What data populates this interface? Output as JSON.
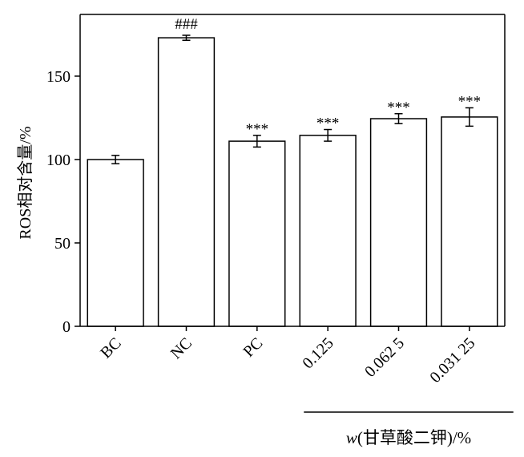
{
  "chart_data": {
    "type": "bar",
    "categories": [
      "BC",
      "NC",
      "PC",
      "0.125",
      "0.062 5",
      "0.031 25"
    ],
    "values": [
      100,
      173,
      111,
      114.5,
      124.5,
      125.5
    ],
    "errors": [
      2.5,
      1.5,
      3.5,
      3.5,
      3,
      5.5
    ],
    "significance": [
      "",
      "###",
      "***",
      "***",
      "***",
      "***"
    ],
    "ylabel": "ROS相对含量/%",
    "ylim": [
      0,
      187
    ],
    "yticks": [
      0,
      50,
      100,
      150
    ],
    "group_label": {
      "prefix": "w",
      "text": "(甘草酸二钾)/%",
      "from_category": 3,
      "to_category": 5
    },
    "bar_fill": "#ffffff",
    "bar_stroke": "#000000"
  }
}
